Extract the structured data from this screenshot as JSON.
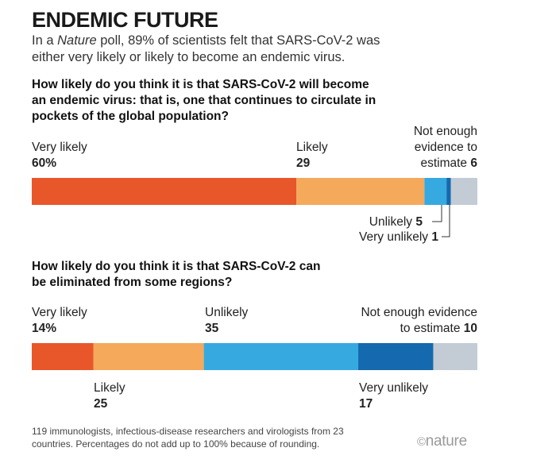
{
  "title": "ENDEMIC FUTURE",
  "subtitle_pre": "In a ",
  "subtitle_em": "Nature",
  "subtitle_post": " poll, 89% of scientists felt that SARS-CoV-2 was either very likely or likely to become an endemic virus.",
  "footnote": "119 immunologists, infectious-disease researchers and virologists from 23 countries. Percentages do not add up to 100% because of rounding.",
  "logo_symbol": "©",
  "logo_text": "nature",
  "colors": {
    "very_likely": "#e8572a",
    "likely": "#f4a95b",
    "unlikely": "#36a9e1",
    "very_unlikely": "#1569ae",
    "not_enough": "#c3ccd4"
  },
  "chart_data": [
    {
      "type": "bar",
      "orientation": "horizontal-stacked",
      "title": "How likely do you think it is that SARS-CoV-2 will become an endemic virus: that is, one that continues to circulate in pockets of the global population?",
      "unit": "%",
      "series": [
        {
          "name": "Very likely",
          "value": 60,
          "display": "60%"
        },
        {
          "name": "Likely",
          "value": 29,
          "display": "29"
        },
        {
          "name": "Unlikely",
          "value": 5,
          "display": "5"
        },
        {
          "name": "Very unlikely",
          "value": 1,
          "display": "1"
        },
        {
          "name": "Not enough evidence to estimate",
          "value": 6,
          "display": "6"
        }
      ],
      "label_lines": {
        "very_likely": "Very likely",
        "likely": "Likely",
        "unlikely": "Unlikely",
        "very_unlikely": "Very unlikely",
        "not_enough_1": "Not enough",
        "not_enough_2": "evidence to",
        "not_enough_3": "estimate"
      }
    },
    {
      "type": "bar",
      "orientation": "horizontal-stacked",
      "title": "How likely do you think it is that SARS-CoV-2 can be eliminated from some regions?",
      "unit": "%",
      "series": [
        {
          "name": "Very likely",
          "value": 14,
          "display": "14%"
        },
        {
          "name": "Likely",
          "value": 25,
          "display": "25"
        },
        {
          "name": "Unlikely",
          "value": 35,
          "display": "35"
        },
        {
          "name": "Very unlikely",
          "value": 17,
          "display": "17"
        },
        {
          "name": "Not enough evidence to estimate",
          "value": 10,
          "display": "10"
        }
      ],
      "label_lines": {
        "very_likely": "Very likely",
        "likely": "Likely",
        "unlikely": "Unlikely",
        "very_unlikely": "Very unlikely",
        "not_enough_1": "Not enough evidence",
        "not_enough_2": "to estimate"
      }
    }
  ]
}
